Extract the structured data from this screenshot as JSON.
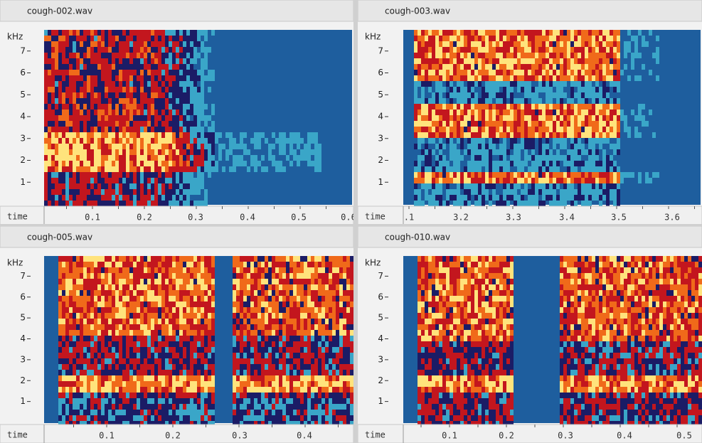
{
  "panels": [
    {
      "title": "cough-002.wav",
      "y_unit": "kHz",
      "y_labels": [
        "7",
        "6",
        "5",
        "4",
        "3",
        "2",
        "1"
      ],
      "x_label": "time",
      "x_labels": [
        "0.1",
        "0.2",
        "0.3",
        "0.4",
        "0.5",
        "0.6"
      ]
    },
    {
      "title": "cough-003.wav",
      "y_unit": "kHz",
      "y_labels": [
        "7",
        "6",
        "5",
        "4",
        "3",
        "2",
        "1"
      ],
      "x_label": "time",
      "x_labels": [
        ".1",
        "3.2",
        "3.3",
        "3.4",
        "3.5",
        "3.6"
      ]
    },
    {
      "title": "cough-005.wav",
      "y_unit": "kHz",
      "y_labels": [
        "7",
        "6",
        "5",
        "4",
        "3",
        "2",
        "1"
      ],
      "x_label": "time",
      "x_labels": [
        "0.1",
        "0.2",
        "0.3",
        "0.4"
      ]
    },
    {
      "title": "cough-010.wav",
      "y_unit": "kHz",
      "y_labels": [
        "7",
        "6",
        "5",
        "4",
        "3",
        "2",
        "1"
      ],
      "x_label": "time",
      "x_labels": [
        "0.1",
        "0.2",
        "0.3",
        "0.4",
        "0.5"
      ]
    }
  ]
}
